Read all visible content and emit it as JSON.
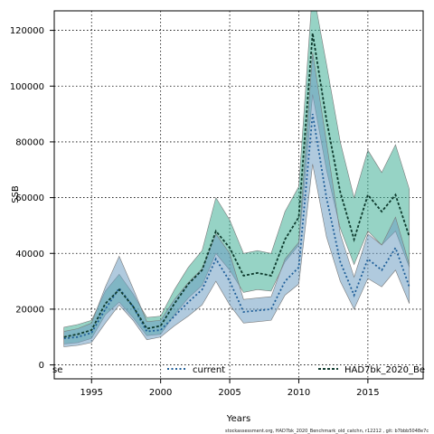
{
  "chart_data": {
    "type": "line",
    "xlabel": "Years",
    "ylabel": "SSB",
    "xlim": [
      1992.3,
      2019.0
    ],
    "ylim": [
      -5000,
      127000
    ],
    "x_ticks": [
      1995,
      2000,
      2005,
      2010,
      2015
    ],
    "y_ticks": [
      0,
      20000,
      40000,
      60000,
      80000,
      100000,
      120000
    ],
    "grid": true,
    "legend_position": "bottom",
    "x": [
      1993,
      1994,
      1995,
      1996,
      1997,
      1998,
      1999,
      2000,
      2001,
      2002,
      2003,
      2004,
      2005,
      2006,
      2007,
      2008,
      2009,
      2010,
      2011,
      2012,
      2013,
      2014,
      2015,
      2016,
      2017,
      2018
    ],
    "series": [
      {
        "name": "current",
        "color": "#1f5f99",
        "fill": "#6f9fc3",
        "line_style": "dotted",
        "values": [
          9500,
          10000,
          11500,
          20000,
          27500,
          21000,
          12000,
          12500,
          17500,
          22500,
          27000,
          38000,
          30000,
          19000,
          19500,
          20000,
          30000,
          35000,
          90000,
          60000,
          37000,
          25000,
          38000,
          34000,
          42000,
          28000
        ],
        "lower": [
          6500,
          7000,
          8000,
          15000,
          21500,
          16000,
          9000,
          10000,
          14000,
          17500,
          21500,
          30000,
          21500,
          15000,
          15500,
          16000,
          25000,
          29000,
          72000,
          46000,
          30000,
          20000,
          31000,
          28000,
          34000,
          22000
        ],
        "upper": [
          12000,
          13000,
          15000,
          28000,
          39000,
          27500,
          15500,
          16000,
          23500,
          29500,
          34500,
          47000,
          40000,
          23500,
          24000,
          24500,
          38000,
          44000,
          112000,
          80000,
          47000,
          31500,
          47000,
          43000,
          53000,
          36000
        ]
      },
      {
        "name": "HAD7bk_2020_Be",
        "color": "#0e3b2e",
        "fill": "#3fae96",
        "line_style": "dashed",
        "values": [
          10000,
          11000,
          12500,
          22000,
          27000,
          21000,
          13000,
          14000,
          22000,
          29000,
          34000,
          48000,
          42000,
          32000,
          33000,
          32000,
          45000,
          53000,
          119000,
          88000,
          62000,
          45000,
          61000,
          55000,
          61000,
          46000
        ],
        "lower": [
          7500,
          8000,
          9500,
          18000,
          22500,
          17000,
          10500,
          11000,
          18000,
          24000,
          28500,
          40000,
          34000,
          26000,
          27000,
          26500,
          37000,
          43000,
          97000,
          70000,
          49000,
          36000,
          48000,
          43000,
          48000,
          35000
        ],
        "upper": [
          13500,
          14500,
          16000,
          26500,
          32500,
          25500,
          17000,
          17500,
          27000,
          35000,
          41000,
          60000,
          52000,
          40000,
          41000,
          40000,
          55000,
          64000,
          135000,
          108000,
          80000,
          60000,
          77000,
          69000,
          79000,
          63000
        ]
      }
    ]
  },
  "legend": {
    "truncated_label": "se",
    "items": [
      "current",
      "HAD7bk_2020_Be"
    ]
  },
  "caption": "stockassessment.org, HAD7bk_2020_Benchmark_old_catchn, r12212 , git: b7bbb5048e7c"
}
